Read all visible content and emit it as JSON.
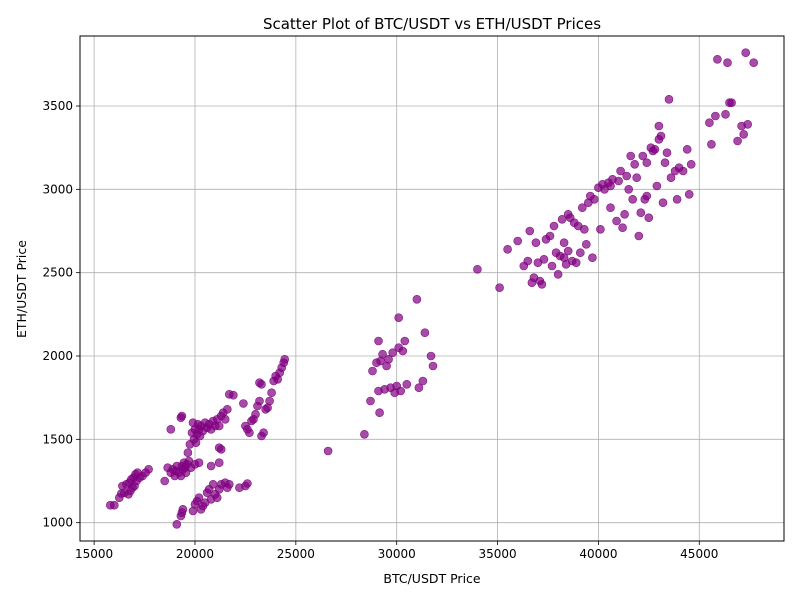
{
  "chart_data": {
    "type": "scatter",
    "title": "Scatter Plot of BTC/USDT vs ETH/USDT Prices",
    "xlabel": "BTC/USDT Price",
    "ylabel": "ETH/USDT Price",
    "xlim": [
      14300,
      49200
    ],
    "ylim": [
      890,
      3920
    ],
    "xticks": [
      15000,
      20000,
      25000,
      30000,
      35000,
      40000,
      45000
    ],
    "yticks": [
      1000,
      1500,
      2000,
      2500,
      3000,
      3500
    ],
    "grid": true,
    "marker_color": "#800080",
    "points": [
      [
        15800,
        1105
      ],
      [
        16000,
        1105
      ],
      [
        16250,
        1150
      ],
      [
        16350,
        1175
      ],
      [
        16400,
        1220
      ],
      [
        16500,
        1180
      ],
      [
        16600,
        1230
      ],
      [
        16700,
        1170
      ],
      [
        16750,
        1240
      ],
      [
        16800,
        1190
      ],
      [
        16850,
        1260
      ],
      [
        16900,
        1210
      ],
      [
        16950,
        1270
      ],
      [
        17000,
        1220
      ],
      [
        17050,
        1290
      ],
      [
        17100,
        1250
      ],
      [
        17150,
        1300
      ],
      [
        17250,
        1270
      ],
      [
        17400,
        1280
      ],
      [
        17550,
        1300
      ],
      [
        17700,
        1320
      ],
      [
        18500,
        1250
      ],
      [
        18650,
        1330
      ],
      [
        18800,
        1300
      ],
      [
        18900,
        1320
      ],
      [
        19000,
        1280
      ],
      [
        19050,
        1310
      ],
      [
        19100,
        1340
      ],
      [
        19200,
        1300
      ],
      [
        19300,
        1280
      ],
      [
        19350,
        1340
      ],
      [
        19400,
        1320
      ],
      [
        19450,
        1360
      ],
      [
        19500,
        1330
      ],
      [
        19550,
        1300
      ],
      [
        19600,
        1350
      ],
      [
        19650,
        1420
      ],
      [
        19700,
        1370
      ],
      [
        19750,
        1470
      ],
      [
        19800,
        1330
      ],
      [
        19850,
        1540
      ],
      [
        19900,
        1600
      ],
      [
        19950,
        1500
      ],
      [
        20000,
        1560
      ],
      [
        20050,
        1480
      ],
      [
        20100,
        1530
      ],
      [
        20150,
        1590
      ],
      [
        20200,
        1560
      ],
      [
        20250,
        1520
      ],
      [
        20300,
        1580
      ],
      [
        20400,
        1550
      ],
      [
        20500,
        1600
      ],
      [
        20600,
        1570
      ],
      [
        20700,
        1590
      ],
      [
        20800,
        1560
      ],
      [
        20900,
        1610
      ],
      [
        21000,
        1580
      ],
      [
        21100,
        1620
      ],
      [
        21200,
        1580
      ],
      [
        21300,
        1640
      ],
      [
        21400,
        1660
      ],
      [
        21500,
        1620
      ],
      [
        21600,
        1680
      ],
      [
        21700,
        1770
      ],
      [
        21900,
        1765
      ],
      [
        22400,
        1715
      ],
      [
        22500,
        1580
      ],
      [
        22600,
        1560
      ],
      [
        22700,
        1540
      ],
      [
        22800,
        1610
      ],
      [
        22900,
        1620
      ],
      [
        23000,
        1650
      ],
      [
        23100,
        1700
      ],
      [
        23200,
        1730
      ],
      [
        23300,
        1520
      ],
      [
        23400,
        1540
      ],
      [
        23500,
        1680
      ],
      [
        23600,
        1690
      ],
      [
        23700,
        1730
      ],
      [
        23800,
        1780
      ],
      [
        23900,
        1850
      ],
      [
        24000,
        1880
      ],
      [
        24100,
        1860
      ],
      [
        24200,
        1900
      ],
      [
        24300,
        1930
      ],
      [
        24400,
        1960
      ],
      [
        24450,
        1980
      ],
      [
        23200,
        1840
      ],
      [
        23300,
        1830
      ],
      [
        18800,
        1560
      ],
      [
        19300,
        1630
      ],
      [
        19350,
        1640
      ],
      [
        19100,
        990
      ],
      [
        19300,
        1040
      ],
      [
        19350,
        1060
      ],
      [
        19400,
        1080
      ],
      [
        19900,
        1070
      ],
      [
        20000,
        1110
      ],
      [
        20100,
        1130
      ],
      [
        20200,
        1150
      ],
      [
        20300,
        1080
      ],
      [
        20400,
        1100
      ],
      [
        20500,
        1120
      ],
      [
        20600,
        1180
      ],
      [
        20700,
        1200
      ],
      [
        20800,
        1140
      ],
      [
        20900,
        1230
      ],
      [
        21000,
        1170
      ],
      [
        21100,
        1150
      ],
      [
        21200,
        1200
      ],
      [
        21300,
        1230
      ],
      [
        21500,
        1240
      ],
      [
        21600,
        1210
      ],
      [
        21700,
        1230
      ],
      [
        22200,
        1210
      ],
      [
        22500,
        1220
      ],
      [
        22600,
        1235
      ],
      [
        21200,
        1450
      ],
      [
        21300,
        1440
      ],
      [
        20000,
        1350
      ],
      [
        20200,
        1360
      ],
      [
        20800,
        1340
      ],
      [
        21200,
        1360
      ],
      [
        26600,
        1430
      ],
      [
        28400,
        1530
      ],
      [
        28700,
        1730
      ],
      [
        28800,
        1910
      ],
      [
        29000,
        1960
      ],
      [
        29100,
        1790
      ],
      [
        29150,
        1660
      ],
      [
        29200,
        1970
      ],
      [
        29300,
        2010
      ],
      [
        29400,
        1800
      ],
      [
        29500,
        1940
      ],
      [
        29600,
        1980
      ],
      [
        29700,
        1810
      ],
      [
        29800,
        2020
      ],
      [
        29900,
        1780
      ],
      [
        30000,
        1820
      ],
      [
        30100,
        2050
      ],
      [
        30200,
        1790
      ],
      [
        30300,
        2030
      ],
      [
        30400,
        2090
      ],
      [
        30500,
        1830
      ],
      [
        31000,
        2340
      ],
      [
        31100,
        1810
      ],
      [
        31300,
        1850
      ],
      [
        31400,
        2140
      ],
      [
        31700,
        2000
      ],
      [
        31800,
        1940
      ],
      [
        29100,
        2090
      ],
      [
        30100,
        2230
      ],
      [
        34000,
        2520
      ],
      [
        35100,
        2410
      ],
      [
        35500,
        2640
      ],
      [
        36000,
        2690
      ],
      [
        36300,
        2540
      ],
      [
        36500,
        2570
      ],
      [
        36600,
        2750
      ],
      [
        36700,
        2440
      ],
      [
        36800,
        2470
      ],
      [
        36900,
        2680
      ],
      [
        37000,
        2560
      ],
      [
        37100,
        2450
      ],
      [
        37200,
        2430
      ],
      [
        37300,
        2580
      ],
      [
        37400,
        2700
      ],
      [
        37600,
        2720
      ],
      [
        37700,
        2540
      ],
      [
        37800,
        2780
      ],
      [
        37900,
        2620
      ],
      [
        38000,
        2490
      ],
      [
        38100,
        2600
      ],
      [
        38200,
        2820
      ],
      [
        38300,
        2590
      ],
      [
        38400,
        2550
      ],
      [
        38500,
        2630
      ],
      [
        38600,
        2830
      ],
      [
        38700,
        2570
      ],
      [
        38800,
        2800
      ],
      [
        38900,
        2560
      ],
      [
        39000,
        2780
      ],
      [
        39100,
        2620
      ],
      [
        39200,
        2890
      ],
      [
        39300,
        2760
      ],
      [
        39400,
        2670
      ],
      [
        39500,
        2920
      ],
      [
        39600,
        2960
      ],
      [
        39700,
        2590
      ],
      [
        39800,
        2940
      ],
      [
        40000,
        3010
      ],
      [
        40100,
        2760
      ],
      [
        40200,
        3030
      ],
      [
        40300,
        3000
      ],
      [
        40500,
        3040
      ],
      [
        40600,
        2890
      ],
      [
        40700,
        3060
      ],
      [
        40900,
        2810
      ],
      [
        41000,
        3050
      ],
      [
        41100,
        3110
      ],
      [
        41200,
        2770
      ],
      [
        41300,
        2850
      ],
      [
        41500,
        3000
      ],
      [
        41600,
        3200
      ],
      [
        41700,
        2940
      ],
      [
        41800,
        3150
      ],
      [
        41900,
        3070
      ],
      [
        42000,
        2720
      ],
      [
        42100,
        2860
      ],
      [
        42200,
        3200
      ],
      [
        42300,
        2940
      ],
      [
        42400,
        3160
      ],
      [
        42500,
        2830
      ],
      [
        42600,
        3250
      ],
      [
        42700,
        3230
      ],
      [
        42900,
        3020
      ],
      [
        43000,
        3380
      ],
      [
        43100,
        3320
      ],
      [
        43200,
        2920
      ],
      [
        43300,
        3160
      ],
      [
        43400,
        3220
      ],
      [
        43500,
        3540
      ],
      [
        43600,
        3070
      ],
      [
        43800,
        3110
      ],
      [
        43900,
        2940
      ],
      [
        44000,
        3130
      ],
      [
        44200,
        3110
      ],
      [
        44400,
        3240
      ],
      [
        44500,
        2970
      ],
      [
        44600,
        3150
      ],
      [
        45500,
        3400
      ],
      [
        45600,
        3270
      ],
      [
        45800,
        3440
      ],
      [
        45900,
        3780
      ],
      [
        46300,
        3450
      ],
      [
        46400,
        3760
      ],
      [
        46500,
        3520
      ],
      [
        46600,
        3520
      ],
      [
        46900,
        3290
      ],
      [
        47100,
        3380
      ],
      [
        47200,
        3330
      ],
      [
        47300,
        3820
      ],
      [
        47400,
        3390
      ],
      [
        47700,
        3760
      ],
      [
        38500,
        2850
      ],
      [
        38300,
        2680
      ],
      [
        40600,
        3020
      ],
      [
        41400,
        3080
      ],
      [
        42400,
        2960
      ],
      [
        43000,
        3300
      ],
      [
        42800,
        3240
      ]
    ]
  }
}
